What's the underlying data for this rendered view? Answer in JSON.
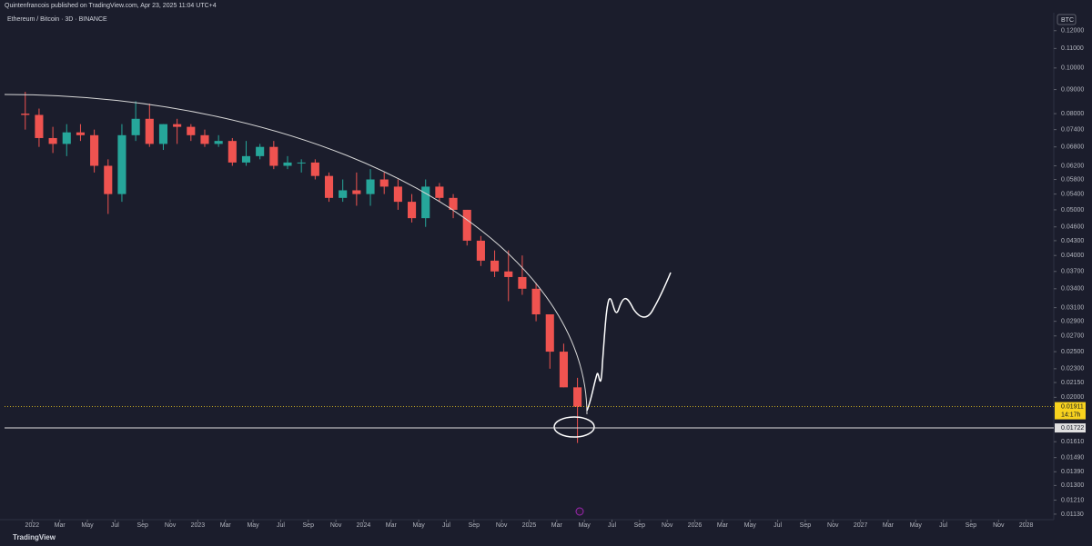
{
  "header": {
    "publisher": "Quintenfrancois published on TradingView.com, Apr 23, 2025 11:04 UTC+4",
    "symbol": "Ethereum / Bitcoin · 3D · BINANCE",
    "currency": "BTC",
    "footer": "TradingView"
  },
  "chart_data": {
    "type": "candlestick",
    "x": [
      "2021-12",
      "2022-01",
      "2022-02",
      "2022-03",
      "2022-04",
      "2022-05",
      "2022-06",
      "2022-07",
      "2022-08",
      "2022-09",
      "2022-10",
      "2022-11",
      "2022-12",
      "2023-01",
      "2023-02",
      "2023-03",
      "2023-04",
      "2023-05",
      "2023-06",
      "2023-07",
      "2023-08",
      "2023-09",
      "2023-10",
      "2023-11",
      "2023-12",
      "2024-01",
      "2024-02",
      "2024-03",
      "2024-04",
      "2024-05",
      "2024-06",
      "2024-07",
      "2024-08",
      "2024-09",
      "2024-10",
      "2024-11",
      "2024-12",
      "2025-01",
      "2025-02",
      "2025-03",
      "2025-04"
    ],
    "open": [
      0.08,
      0.0795,
      0.071,
      0.069,
      0.073,
      0.072,
      0.062,
      0.054,
      0.072,
      0.078,
      0.069,
      0.076,
      0.075,
      0.072,
      0.069,
      0.07,
      0.063,
      0.065,
      0.068,
      0.062,
      0.063,
      0.063,
      0.059,
      0.053,
      0.055,
      0.054,
      0.058,
      0.056,
      0.052,
      0.048,
      0.056,
      0.053,
      0.05,
      0.043,
      0.039,
      0.037,
      0.036,
      0.034,
      0.03,
      0.025,
      0.021
    ],
    "high": [
      0.089,
      0.082,
      0.075,
      0.076,
      0.076,
      0.074,
      0.064,
      0.076,
      0.085,
      0.084,
      0.076,
      0.078,
      0.076,
      0.074,
      0.072,
      0.071,
      0.07,
      0.069,
      0.07,
      0.065,
      0.064,
      0.064,
      0.06,
      0.058,
      0.06,
      0.061,
      0.06,
      0.058,
      0.054,
      0.058,
      0.057,
      0.054,
      0.05,
      0.044,
      0.041,
      0.041,
      0.04,
      0.035,
      0.03,
      0.026,
      0.022
    ],
    "low": [
      0.074,
      0.068,
      0.066,
      0.065,
      0.07,
      0.06,
      0.049,
      0.052,
      0.07,
      0.068,
      0.067,
      0.069,
      0.07,
      0.068,
      0.068,
      0.062,
      0.062,
      0.064,
      0.061,
      0.061,
      0.06,
      0.058,
      0.052,
      0.052,
      0.051,
      0.051,
      0.054,
      0.05,
      0.047,
      0.046,
      0.052,
      0.048,
      0.042,
      0.038,
      0.036,
      0.032,
      0.033,
      0.029,
      0.023,
      0.021,
      0.016
    ],
    "close": [
      0.0795,
      0.071,
      0.069,
      0.073,
      0.072,
      0.062,
      0.054,
      0.072,
      0.078,
      0.069,
      0.076,
      0.075,
      0.072,
      0.069,
      0.07,
      0.063,
      0.065,
      0.068,
      0.062,
      0.063,
      0.063,
      0.059,
      0.053,
      0.055,
      0.054,
      0.058,
      0.056,
      0.052,
      0.048,
      0.056,
      0.053,
      0.05,
      0.043,
      0.039,
      0.037,
      0.036,
      0.034,
      0.03,
      0.025,
      0.021,
      0.01911
    ],
    "up_color": "#26a69a",
    "down_color": "#ef5350",
    "log_scale": true,
    "ylim": [
      0.011,
      0.131
    ],
    "yticks": [
      {
        "value": 0.12,
        "label": "0.12000"
      },
      {
        "value": 0.11,
        "label": "0.11000"
      },
      {
        "value": 0.1,
        "label": "0.10000"
      },
      {
        "value": 0.09,
        "label": "0.09000"
      },
      {
        "value": 0.08,
        "label": "0.08000"
      },
      {
        "value": 0.074,
        "label": "0.07400"
      },
      {
        "value": 0.068,
        "label": "0.06800"
      },
      {
        "value": 0.062,
        "label": "0.06200"
      },
      {
        "value": 0.058,
        "label": "0.05800"
      },
      {
        "value": 0.054,
        "label": "0.05400"
      },
      {
        "value": 0.05,
        "label": "0.05000"
      },
      {
        "value": 0.046,
        "label": "0.04600"
      },
      {
        "value": 0.043,
        "label": "0.04300"
      },
      {
        "value": 0.04,
        "label": "0.04000"
      },
      {
        "value": 0.037,
        "label": "0.03700"
      },
      {
        "value": 0.034,
        "label": "0.03400"
      },
      {
        "value": 0.031,
        "label": "0.03100"
      },
      {
        "value": 0.029,
        "label": "0.02900"
      },
      {
        "value": 0.027,
        "label": "0.02700"
      },
      {
        "value": 0.025,
        "label": "0.02500"
      },
      {
        "value": 0.023,
        "label": "0.02300"
      },
      {
        "value": 0.0215,
        "label": "0.02150"
      },
      {
        "value": 0.02,
        "label": "0.02000"
      },
      {
        "value": 0.0161,
        "label": "0.01610"
      },
      {
        "value": 0.0149,
        "label": "0.01490"
      },
      {
        "value": 0.0139,
        "label": "0.01390"
      },
      {
        "value": 0.013,
        "label": "0.01300"
      },
      {
        "value": 0.0121,
        "label": "0.01210"
      },
      {
        "value": 0.0113,
        "label": "0.01130"
      }
    ],
    "xlim": [
      "2021-11",
      "2028-03"
    ],
    "xticks": [
      {
        "value": "2022-01",
        "label": "2022"
      },
      {
        "value": "2022-03",
        "label": "Mar"
      },
      {
        "value": "2022-05",
        "label": "May"
      },
      {
        "value": "2022-07",
        "label": "Jul"
      },
      {
        "value": "2022-09",
        "label": "Sep"
      },
      {
        "value": "2022-11",
        "label": "Nov"
      },
      {
        "value": "2023-01",
        "label": "2023"
      },
      {
        "value": "2023-03",
        "label": "Mar"
      },
      {
        "value": "2023-05",
        "label": "May"
      },
      {
        "value": "2023-07",
        "label": "Jul"
      },
      {
        "value": "2023-09",
        "label": "Sep"
      },
      {
        "value": "2023-11",
        "label": "Nov"
      },
      {
        "value": "2024-01",
        "label": "2024"
      },
      {
        "value": "2024-03",
        "label": "Mar"
      },
      {
        "value": "2024-05",
        "label": "May"
      },
      {
        "value": "2024-07",
        "label": "Jul"
      },
      {
        "value": "2024-09",
        "label": "Sep"
      },
      {
        "value": "2024-11",
        "label": "Nov"
      },
      {
        "value": "2025-01",
        "label": "2025"
      },
      {
        "value": "2025-03",
        "label": "Mar"
      },
      {
        "value": "2025-05",
        "label": "May"
      },
      {
        "value": "2025-07",
        "label": "Jul"
      },
      {
        "value": "2025-09",
        "label": "Sep"
      },
      {
        "value": "2025-11",
        "label": "Nov"
      },
      {
        "value": "2026-01",
        "label": "2026"
      },
      {
        "value": "2026-03",
        "label": "Mar"
      },
      {
        "value": "2026-05",
        "label": "May"
      },
      {
        "value": "2026-07",
        "label": "Jul"
      },
      {
        "value": "2026-09",
        "label": "Sep"
      },
      {
        "value": "2026-11",
        "label": "Nov"
      },
      {
        "value": "2027-01",
        "label": "2027"
      },
      {
        "value": "2027-03",
        "label": "Mar"
      },
      {
        "value": "2027-05",
        "label": "May"
      },
      {
        "value": "2027-07",
        "label": "Jul"
      },
      {
        "value": "2027-09",
        "label": "Sep"
      },
      {
        "value": "2027-11",
        "label": "Nov"
      },
      {
        "value": "2028-01",
        "label": "2028"
      }
    ],
    "last_price": 0.01911,
    "last_price_color": "#f7d21e",
    "countdown": "14:17h",
    "horizontal_line": 0.01722
  }
}
